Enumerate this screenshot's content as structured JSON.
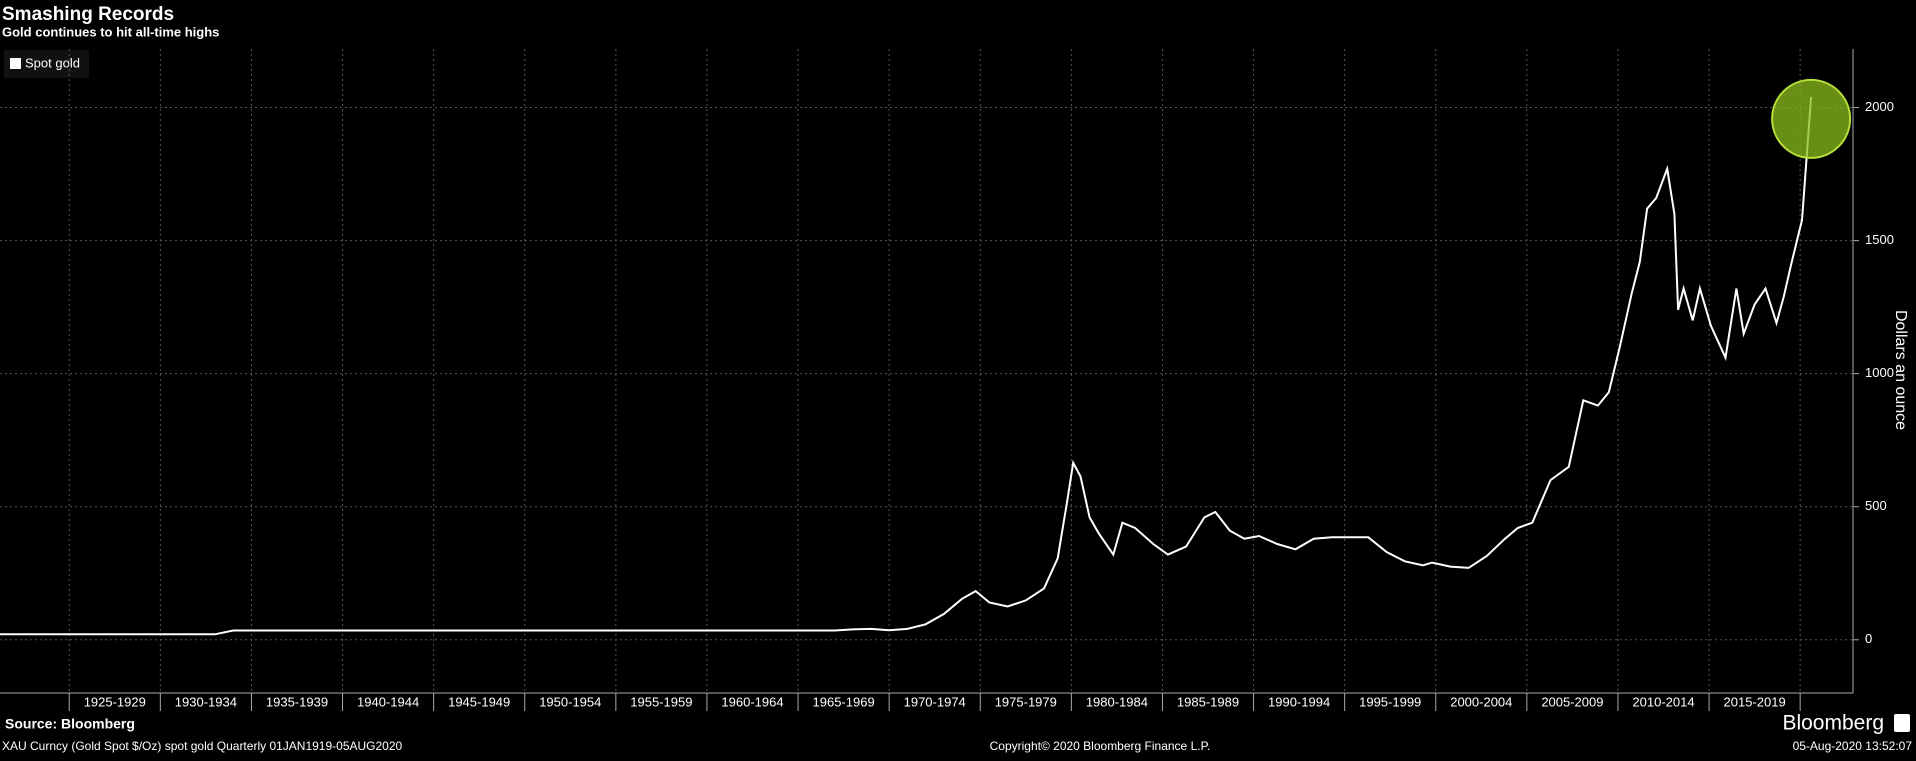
{
  "chart_data": {
    "type": "line",
    "title": "Smashing Records",
    "subtitle": "Gold continues to hit all-time highs",
    "y_label": "Dollars an ounce",
    "source": "Source: Bloomberg",
    "footer_left": "XAU Curncy (Gold Spot  $/Oz) spot gold  Quarterly 01JAN1919-05AUG2020",
    "footer_center": "Copyright© 2020 Bloomberg Finance L.P.",
    "footer_right": "05-Aug-2020 13:52:07",
    "brand": "Bloomberg",
    "legend": "top-left",
    "grid": true,
    "x": [
      1921,
      1933,
      1934,
      1967,
      1968,
      1969,
      1970,
      1971,
      1972,
      1973,
      1974,
      1974.75,
      1975.5,
      1976.5,
      1977.5,
      1978.5,
      1979.25,
      1979.75,
      1980.1,
      1980.5,
      1981,
      1981.5,
      1982.3,
      1982.8,
      1983.5,
      1984.5,
      1985.3,
      1986.3,
      1987.3,
      1987.9,
      1988.7,
      1989.5,
      1990.3,
      1991.3,
      1992.3,
      1993.3,
      1994.3,
      1995.3,
      1996.3,
      1997.3,
      1998.3,
      1999.3,
      1999.8,
      2000.8,
      2001.8,
      2002.8,
      2003.8,
      2004.5,
      2005.3,
      2006.3,
      2007.3,
      2008.1,
      2008.9,
      2009.5,
      2010.1,
      2010.75,
      2011.2,
      2011.6,
      2012.1,
      2012.7,
      2013.1,
      2013.3,
      2013.6,
      2014.1,
      2014.5,
      2015.1,
      2015.9,
      2016.5,
      2016.9,
      2017.5,
      2018.1,
      2018.7,
      2019.1,
      2019.5,
      2020.1,
      2020.6
    ],
    "series": [
      {
        "name": "Spot gold",
        "color": "#ffffff",
        "values": [
          20.67,
          20.67,
          35,
          35,
          39,
          41,
          36,
          41,
          58,
          97,
          154,
          183,
          140,
          125,
          148,
          193,
          306,
          512,
          665,
          614,
          460,
          400,
          320,
          440,
          420,
          360,
          320,
          350,
          460,
          480,
          410,
          380,
          390,
          360,
          340,
          380,
          385,
          385,
          385,
          330,
          295,
          280,
          290,
          275,
          270,
          315,
          380,
          420,
          440,
          600,
          650,
          900,
          880,
          930,
          1100,
          1300,
          1420,
          1620,
          1660,
          1770,
          1600,
          1240,
          1320,
          1200,
          1320,
          1180,
          1060,
          1320,
          1150,
          1260,
          1320,
          1190,
          1290,
          1410,
          1577,
          2040
        ]
      }
    ],
    "xlim": [
      1921.2,
      2022.9
    ],
    "xticks": [
      {
        "value": 1925,
        "label": "1925-1929"
      },
      {
        "value": 1930,
        "label": "1930-1934"
      },
      {
        "value": 1935,
        "label": "1935-1939"
      },
      {
        "value": 1940,
        "label": "1940-1944"
      },
      {
        "value": 1945,
        "label": "1945-1949"
      },
      {
        "value": 1950,
        "label": "1950-1954"
      },
      {
        "value": 1955,
        "label": "1955-1959"
      },
      {
        "value": 1960,
        "label": "1960-1964"
      },
      {
        "value": 1965,
        "label": "1965-1969"
      },
      {
        "value": 1970,
        "label": "1970-1974"
      },
      {
        "value": 1975,
        "label": "1975-1979"
      },
      {
        "value": 1980,
        "label": "1980-1984"
      },
      {
        "value": 1985,
        "label": "1985-1989"
      },
      {
        "value": 1990,
        "label": "1990-1994"
      },
      {
        "value": 1995,
        "label": "1995-1999"
      },
      {
        "value": 2000,
        "label": "2000-2004"
      },
      {
        "value": 2005,
        "label": "2005-2009"
      },
      {
        "value": 2010,
        "label": "2010-2014"
      },
      {
        "value": 2015,
        "label": "2015-2019"
      }
    ],
    "ylim": [
      -200,
      2220
    ],
    "yticks": [
      0,
      500,
      1000,
      1500,
      2000
    ]
  }
}
